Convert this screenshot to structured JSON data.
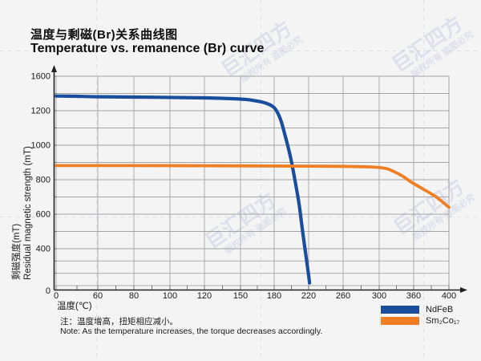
{
  "title": {
    "zh": "温度与剩磁(Br)关系曲线图",
    "en": "Temperature vs. remanence (Br) curve"
  },
  "watermark": {
    "brand": "巨汇四方",
    "notice": "版权所有 盗图必究"
  },
  "chart_data": {
    "type": "line",
    "x_axis": {
      "title_zh": "温度(℃)",
      "tick_labels": [
        "0",
        "60",
        "80",
        "100",
        "120",
        "150",
        "180",
        "220",
        "260",
        "300",
        "360",
        "400"
      ],
      "tick_values": [
        0,
        60,
        80,
        100,
        120,
        150,
        180,
        220,
        260,
        300,
        360,
        400
      ]
    },
    "y_axis": {
      "title_zh": "剩磁强度(mT)",
      "title_en": "Residual magnetic strength (mT)",
      "tick_labels": [
        "1600",
        "1200",
        "1000",
        "800",
        "600",
        "400",
        "0"
      ],
      "tick_values": [
        1600,
        1200,
        1000,
        800,
        600,
        400,
        0
      ],
      "range": [
        0,
        1600
      ]
    },
    "series": [
      {
        "name": "NdFeB",
        "color": "#1a4e9d",
        "points": [
          [
            0,
            1370
          ],
          [
            30,
            1367
          ],
          [
            60,
            1362
          ],
          [
            90,
            1356
          ],
          [
            120,
            1349
          ],
          [
            150,
            1335
          ],
          [
            162,
            1318
          ],
          [
            172,
            1290
          ],
          [
            180,
            1235
          ],
          [
            187,
            1155
          ],
          [
            193,
            1050
          ],
          [
            199,
            930
          ],
          [
            204,
            800
          ],
          [
            209,
            655
          ],
          [
            213,
            500
          ],
          [
            217,
            320
          ],
          [
            220,
            130
          ],
          [
            221,
            55
          ]
        ]
      },
      {
        "name": "Sm₂Co₁₇",
        "color": "#f07f23",
        "points": [
          [
            0,
            882
          ],
          [
            80,
            882
          ],
          [
            160,
            880
          ],
          [
            240,
            878
          ],
          [
            290,
            874
          ],
          [
            310,
            866
          ],
          [
            325,
            848
          ],
          [
            340,
            822
          ],
          [
            355,
            788
          ],
          [
            370,
            748
          ],
          [
            385,
            702
          ],
          [
            400,
            640
          ]
        ]
      }
    ]
  },
  "legend": {
    "items": [
      {
        "label": "NdFeB",
        "color": "#1a4e9d"
      },
      {
        "label": "Sm₂Co₁₇",
        "color": "#f07f23"
      }
    ]
  },
  "note": {
    "zh": "注：温度增高，扭矩相应减小。",
    "en": "Note: As the temperature increases, the torque decreases accordingly."
  }
}
